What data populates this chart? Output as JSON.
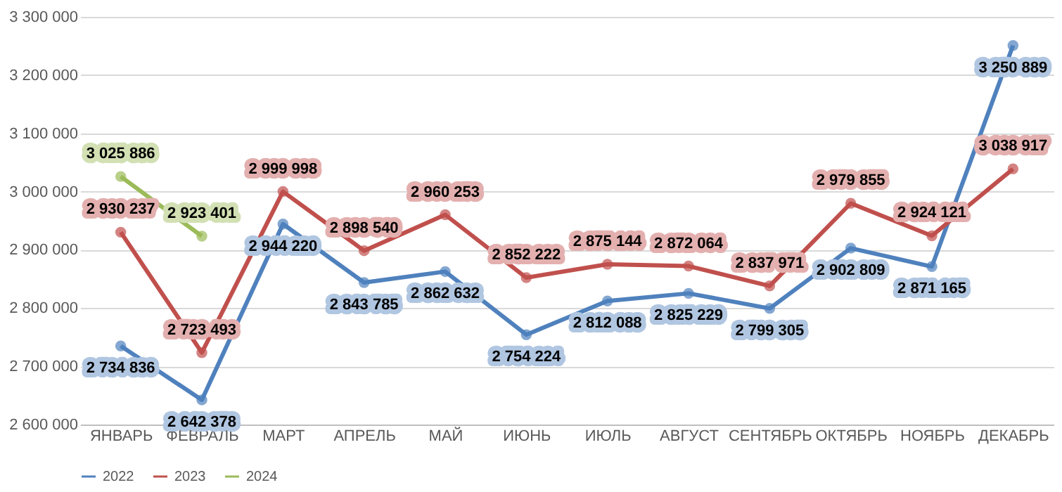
{
  "chart_data": {
    "type": "line",
    "categories": [
      "ЯНВАРЬ",
      "ФЕВРАЛЬ",
      "МАРТ",
      "АПРЕЛЬ",
      "МАЙ",
      "ИЮНЬ",
      "ИЮЛЬ",
      "АВГУСТ",
      "СЕНТЯБРЬ",
      "ОКТЯБРЬ",
      "НОЯБРЬ",
      "ДЕКАБРЬ"
    ],
    "series": [
      {
        "name": "2022",
        "color": "#4f81bd",
        "values": [
          2734836,
          2642378,
          2944220,
          2843785,
          2862632,
          2754224,
          2812088,
          2825229,
          2799305,
          2902809,
          2871165,
          3250889
        ]
      },
      {
        "name": "2023",
        "color": "#c0504d",
        "values": [
          2930237,
          2723493,
          2999998,
          2898540,
          2960253,
          2852222,
          2875144,
          2872064,
          2837971,
          2979855,
          2924121,
          3038917
        ]
      },
      {
        "name": "2024",
        "color": "#9bbb59",
        "values": [
          3025886,
          2923401,
          null,
          null,
          null,
          null,
          null,
          null,
          null,
          null,
          null,
          null
        ]
      }
    ],
    "ylim": [
      2600000,
      3300000
    ],
    "yticks": [
      2600000,
      2700000,
      2800000,
      2900000,
      3000000,
      3100000,
      3200000,
      3300000
    ],
    "grid": "y",
    "legend": "bottom",
    "marker": "circle",
    "line_style": "solid",
    "data_labels": true
  }
}
